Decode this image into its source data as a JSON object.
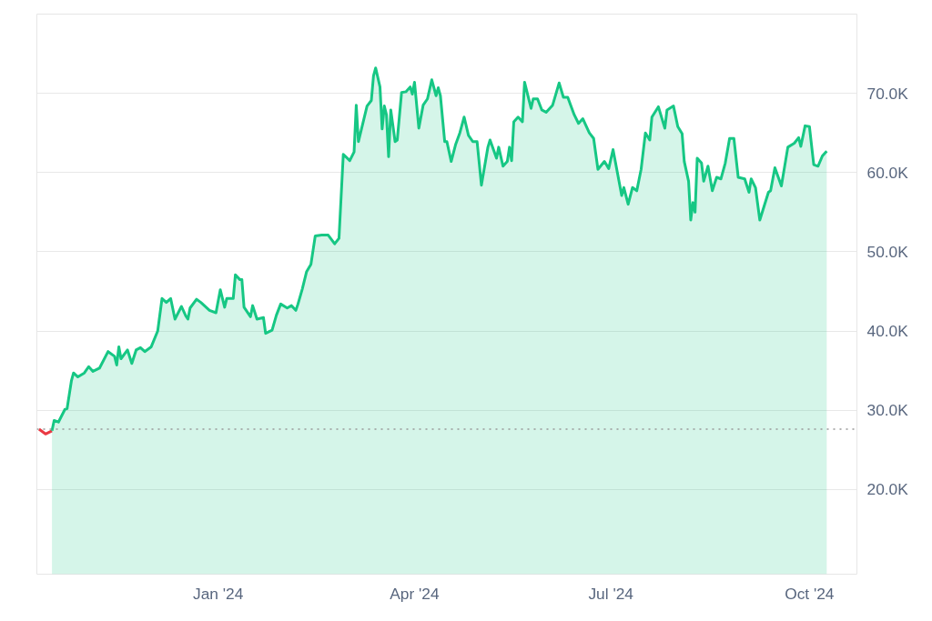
{
  "chart_data": {
    "type": "area",
    "xlim": [
      "2023-10-09",
      "2024-10-23"
    ],
    "ylim": [
      9300,
      80000
    ],
    "xticks": [
      {
        "value": "2024-01-01",
        "label": "Jan '24"
      },
      {
        "value": "2024-04-01",
        "label": "Apr '24"
      },
      {
        "value": "2024-07-01",
        "label": "Jul '24"
      },
      {
        "value": "2024-10-01",
        "label": "Oct '24"
      }
    ],
    "yticks": [
      {
        "value": 20000,
        "label": "20.0K"
      },
      {
        "value": 30000,
        "label": "30.0K"
      },
      {
        "value": 40000,
        "label": "40.0K"
      },
      {
        "value": 50000,
        "label": "50.0K"
      },
      {
        "value": 60000,
        "label": "60.0K"
      },
      {
        "value": 70000,
        "label": "70.0K"
      }
    ],
    "grid": "y",
    "ref_lines": [
      {
        "axis": "y",
        "value": 27600,
        "color": "#999999",
        "line_style": "dotted"
      }
    ],
    "series": [
      {
        "type": "line",
        "color": "#ea3943",
        "x": [
          "2023-10-10",
          "2023-10-13",
          "2023-10-16"
        ],
        "values": [
          27600,
          27000,
          27400
        ]
      },
      {
        "color": "#16c784",
        "x": [
          "2023-10-16",
          "2023-10-17",
          "2023-10-19",
          "2023-10-22",
          "2023-10-23",
          "2023-10-25",
          "2023-10-26",
          "2023-10-28",
          "2023-10-31",
          "2023-11-02",
          "2023-11-04",
          "2023-11-07",
          "2023-11-11",
          "2023-11-14",
          "2023-11-15",
          "2023-11-16",
          "2023-11-17",
          "2023-11-20",
          "2023-11-22",
          "2023-11-24",
          "2023-11-26",
          "2023-11-28",
          "2023-12-01",
          "2023-12-04",
          "2023-12-06",
          "2023-12-08",
          "2023-12-10",
          "2023-12-12",
          "2023-12-15",
          "2023-12-17",
          "2023-12-18",
          "2023-12-19",
          "2023-12-22",
          "2023-12-24",
          "2023-12-28",
          "2023-12-31",
          "2024-01-02",
          "2024-01-04",
          "2024-01-05",
          "2024-01-08",
          "2024-01-09",
          "2024-01-11",
          "2024-01-12",
          "2024-01-13",
          "2024-01-16",
          "2024-01-17",
          "2024-01-19",
          "2024-01-22",
          "2024-01-23",
          "2024-01-26",
          "2024-01-28",
          "2024-01-30",
          "2024-02-02",
          "2024-02-04",
          "2024-02-06",
          "2024-02-07",
          "2024-02-09",
          "2024-02-11",
          "2024-02-13",
          "2024-02-14",
          "2024-02-15",
          "2024-02-18",
          "2024-02-21",
          "2024-02-24",
          "2024-02-26",
          "2024-02-28",
          "2024-03-02",
          "2024-03-04",
          "2024-03-05",
          "2024-03-06",
          "2024-03-10",
          "2024-03-12",
          "2024-03-13",
          "2024-03-14",
          "2024-03-16",
          "2024-03-17",
          "2024-03-18",
          "2024-03-19",
          "2024-03-20",
          "2024-03-21",
          "2024-03-23",
          "2024-03-24",
          "2024-03-26",
          "2024-03-28",
          "2024-03-30",
          "2024-03-31",
          "2024-04-01",
          "2024-04-03",
          "2024-04-05",
          "2024-04-07",
          "2024-04-09",
          "2024-04-11",
          "2024-04-12",
          "2024-04-13",
          "2024-04-15",
          "2024-04-16",
          "2024-04-18",
          "2024-04-20",
          "2024-04-22",
          "2024-04-24",
          "2024-04-26",
          "2024-04-28",
          "2024-04-30",
          "2024-05-02",
          "2024-05-05",
          "2024-05-06",
          "2024-05-09",
          "2024-05-10",
          "2024-05-12",
          "2024-05-14",
          "2024-05-15",
          "2024-05-16",
          "2024-05-17",
          "2024-05-19",
          "2024-05-21",
          "2024-05-22",
          "2024-05-25",
          "2024-05-26",
          "2024-05-28",
          "2024-05-30",
          "2024-06-01",
          "2024-06-04",
          "2024-06-07",
          "2024-06-09",
          "2024-06-11",
          "2024-06-14",
          "2024-06-16",
          "2024-06-18",
          "2024-06-21",
          "2024-06-23",
          "2024-06-25",
          "2024-06-28",
          "2024-06-30",
          "2024-07-02",
          "2024-07-06",
          "2024-07-07",
          "2024-07-09",
          "2024-07-11",
          "2024-07-13",
          "2024-07-15",
          "2024-07-17",
          "2024-07-19",
          "2024-07-20",
          "2024-07-23",
          "2024-07-26",
          "2024-07-27",
          "2024-07-30",
          "2024-08-01",
          "2024-08-03",
          "2024-08-04",
          "2024-08-06",
          "2024-08-07",
          "2024-08-08",
          "2024-08-09",
          "2024-08-10",
          "2024-08-12",
          "2024-08-13",
          "2024-08-15",
          "2024-08-17",
          "2024-08-19",
          "2024-08-21",
          "2024-08-23",
          "2024-08-25",
          "2024-08-27",
          "2024-08-29",
          "2024-09-01",
          "2024-09-03",
          "2024-09-04",
          "2024-09-06",
          "2024-09-08",
          "2024-09-12",
          "2024-09-13",
          "2024-09-15",
          "2024-09-18",
          "2024-09-21",
          "2024-09-24",
          "2024-09-26",
          "2024-09-27",
          "2024-09-29",
          "2024-10-01",
          "2024-10-03",
          "2024-10-05",
          "2024-10-07",
          "2024-10-09"
        ],
        "values": [
          27400,
          28700,
          28500,
          30100,
          30200,
          33700,
          34700,
          34200,
          34700,
          35500,
          34900,
          35300,
          37400,
          36800,
          35700,
          38000,
          36500,
          37600,
          35900,
          37600,
          37900,
          37400,
          38000,
          40000,
          44100,
          43600,
          44100,
          41500,
          43100,
          41900,
          41500,
          42900,
          44000,
          43600,
          42600,
          42300,
          45200,
          43000,
          44100,
          44100,
          47100,
          46500,
          46500,
          43000,
          41800,
          43200,
          41500,
          41700,
          39700,
          40100,
          42000,
          43400,
          42900,
          43200,
          42600,
          43400,
          45300,
          47500,
          48400,
          50200,
          52000,
          52100,
          52100,
          51000,
          51700,
          62300,
          61500,
          62600,
          68500,
          63900,
          68400,
          69100,
          72200,
          73200,
          70800,
          65500,
          68400,
          67300,
          62000,
          67900,
          63900,
          64100,
          70100,
          70200,
          70800,
          69900,
          71400,
          65600,
          68500,
          69300,
          71700,
          69700,
          70700,
          69700,
          63900,
          63900,
          61400,
          63500,
          65000,
          67000,
          64700,
          63900,
          63900,
          58400,
          63200,
          64100,
          61800,
          63200,
          60800,
          61400,
          63200,
          61500,
          66400,
          67000,
          66400,
          71400,
          68100,
          69300,
          69300,
          67900,
          67600,
          68500,
          71300,
          69500,
          69500,
          67300,
          66200,
          66800,
          65000,
          64300,
          60400,
          61400,
          60500,
          62900,
          57100,
          58100,
          56000,
          58100,
          57700,
          60400,
          65000,
          64100,
          67000,
          68300,
          65600,
          67900,
          68400,
          65800,
          64900,
          61400,
          58900,
          54000,
          56200,
          55000,
          61800,
          61200,
          58900,
          60800,
          57700,
          59400,
          59200,
          61200,
          64300,
          64300,
          59400,
          59200,
          57500,
          59200,
          58100,
          54000,
          57500,
          57700,
          60600,
          58300,
          63200,
          63700,
          64400,
          63300,
          65900,
          65800,
          61000,
          60800,
          62100,
          62700
        ]
      }
    ]
  }
}
